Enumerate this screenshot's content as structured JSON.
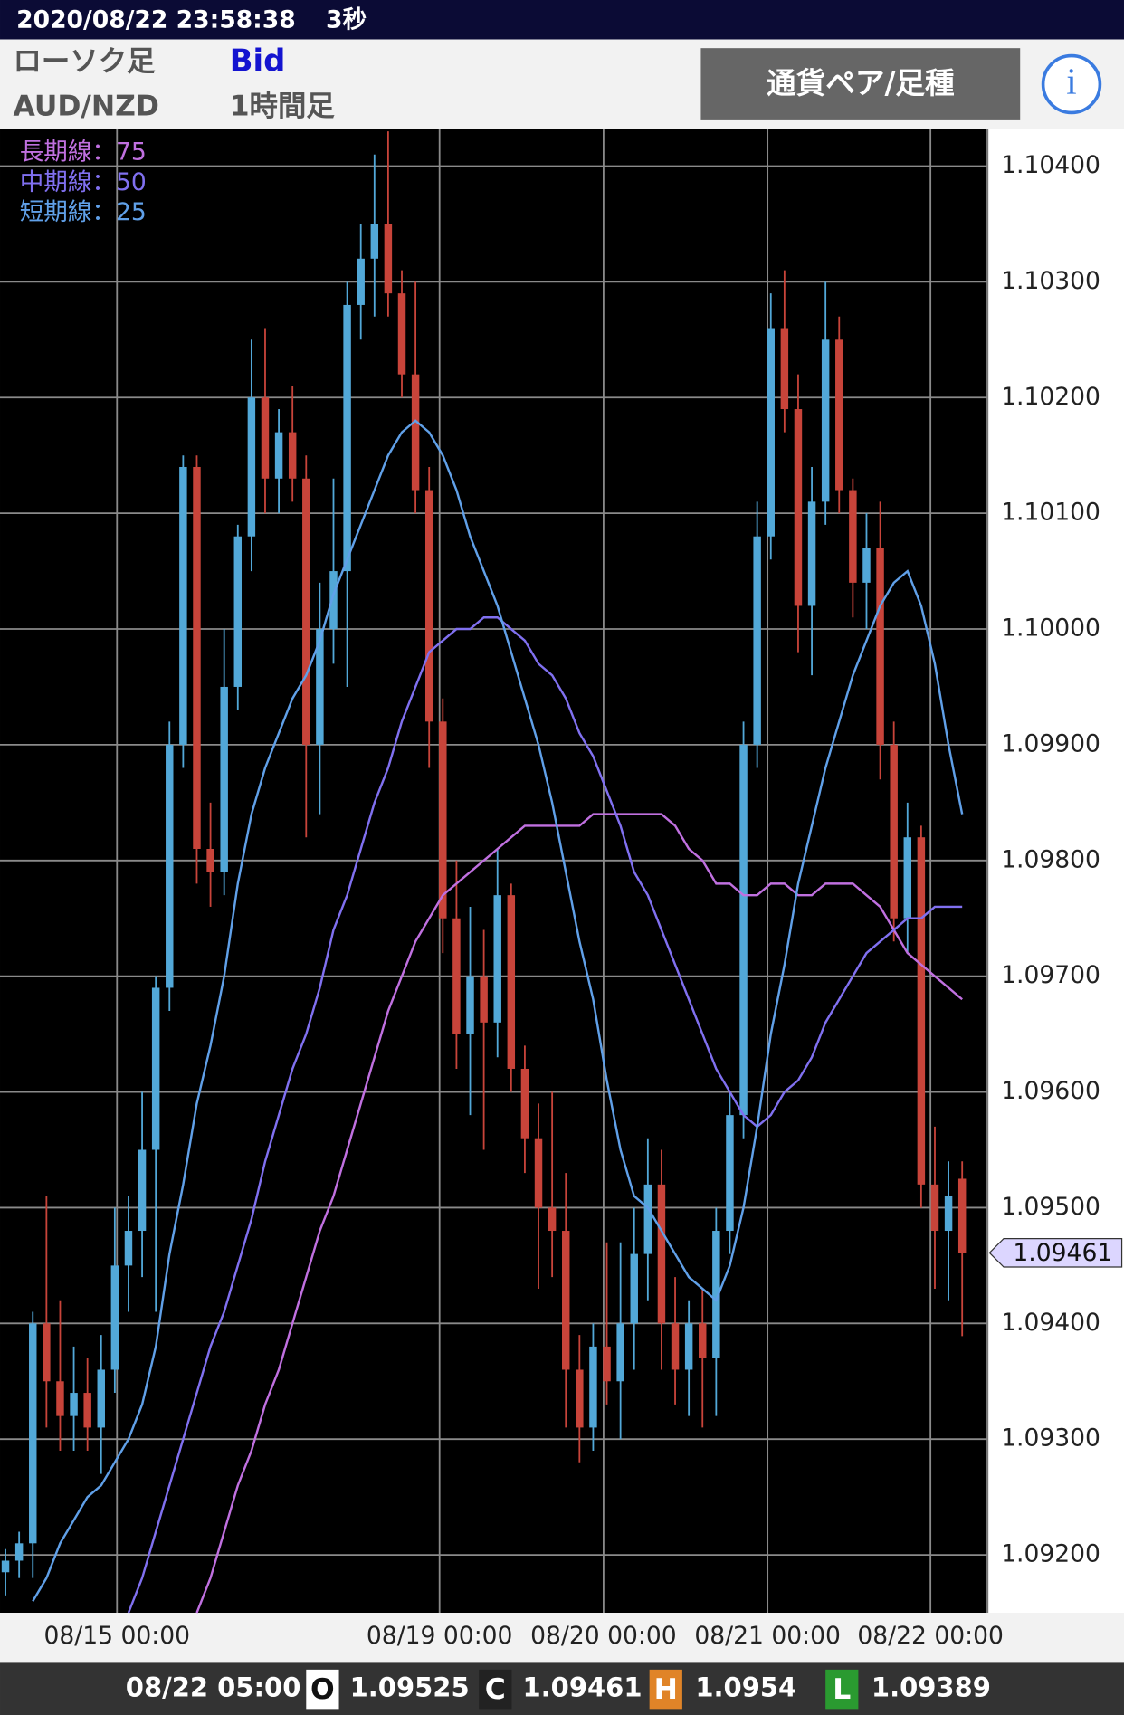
{
  "header": {
    "datetime": "2020/08/22 23:58:38",
    "interval": "3秒",
    "chart_kind": "ローソク足",
    "price_side": "Bid",
    "pair": "AUD/NZD",
    "timeframe": "1時間足",
    "button": "通貨ペア/足種",
    "info": "i"
  },
  "chart_data": {
    "type": "candlestick",
    "up_color": "#52a8d8",
    "down_color": "#c8443a",
    "grid": true,
    "xlim": [
      -0.4,
      71.84
    ],
    "ylim": [
      1.0915,
      1.10432
    ],
    "xticks": [
      {
        "value": 8.16,
        "label": "08/15 00:00"
      },
      {
        "value": 31.76,
        "label": "08/19 00:00"
      },
      {
        "value": 43.76,
        "label": "08/20 00:00"
      },
      {
        "value": 55.76,
        "label": "08/21 00:00"
      },
      {
        "value": 67.68,
        "label": "08/22 00:00"
      }
    ],
    "yticks": [
      {
        "value": 1.092,
        "label": "1.09200"
      },
      {
        "value": 1.093,
        "label": "1.09300"
      },
      {
        "value": 1.094,
        "label": "1.09400"
      },
      {
        "value": 1.095,
        "label": "1.09500"
      },
      {
        "value": 1.096,
        "label": "1.09600"
      },
      {
        "value": 1.097,
        "label": "1.09700"
      },
      {
        "value": 1.098,
        "label": "1.09800"
      },
      {
        "value": 1.099,
        "label": "1.09900"
      },
      {
        "value": 1.1,
        "label": "1.10000"
      },
      {
        "value": 1.101,
        "label": "1.10100"
      },
      {
        "value": 1.102,
        "label": "1.10200"
      },
      {
        "value": 1.103,
        "label": "1.10300"
      },
      {
        "value": 1.104,
        "label": "1.10400"
      }
    ],
    "open": [
      1.09185,
      1.09195,
      1.0921,
      1.094,
      1.0935,
      1.0932,
      1.0934,
      1.0931,
      1.0936,
      1.0945,
      1.0948,
      1.0955,
      1.0969,
      1.099,
      1.1014,
      1.0981,
      1.0979,
      1.0995,
      1.1008,
      1.102,
      1.1013,
      1.1017,
      1.1013,
      1.099,
      1.1,
      1.1005,
      1.1028,
      1.1032,
      1.1035,
      1.1029,
      1.1022,
      1.1012,
      1.0992,
      1.0975,
      1.0965,
      1.097,
      1.0966,
      1.0977,
      1.0962,
      1.0956,
      1.095,
      1.0948,
      1.0936,
      1.0931,
      1.0938,
      1.0935,
      1.094,
      1.0946,
      1.0952,
      1.094,
      1.0936,
      1.094,
      1.0937,
      1.0948,
      1.0958,
      1.099,
      1.1008,
      1.1026,
      1.1019,
      1.1002,
      1.1011,
      1.1025,
      1.1012,
      1.1004,
      1.1007,
      1.099,
      1.0975,
      1.0982,
      1.0952,
      1.0948,
      1.09525
    ],
    "high": [
      1.09205,
      1.0922,
      1.0941,
      1.0951,
      1.0942,
      1.0938,
      1.0937,
      1.0939,
      1.095,
      1.0951,
      1.096,
      1.097,
      1.0992,
      1.1015,
      1.1015,
      1.0985,
      1.1,
      1.1009,
      1.1025,
      1.1026,
      1.1019,
      1.1021,
      1.1015,
      1.1004,
      1.1013,
      1.103,
      1.1035,
      1.1041,
      1.1043,
      1.1031,
      1.103,
      1.1014,
      1.0994,
      1.098,
      1.0976,
      1.0974,
      1.0981,
      1.0978,
      1.0964,
      1.0959,
      1.096,
      1.0953,
      1.0939,
      1.094,
      1.0947,
      1.0947,
      1.095,
      1.0956,
      1.0955,
      1.0944,
      1.0942,
      1.0943,
      1.095,
      1.096,
      1.0992,
      1.1011,
      1.1029,
      1.1031,
      1.1022,
      1.1014,
      1.103,
      1.1027,
      1.1013,
      1.101,
      1.1011,
      1.0992,
      1.0985,
      1.0983,
      1.0957,
      1.0954,
      1.0954
    ],
    "low": [
      1.09165,
      1.0918,
      1.0918,
      1.0931,
      1.0929,
      1.0929,
      1.0929,
      1.0927,
      1.0934,
      1.0941,
      1.0944,
      1.0941,
      1.0967,
      1.0988,
      1.0978,
      1.0976,
      1.0977,
      1.0993,
      1.1005,
      1.101,
      1.101,
      1.1011,
      1.0982,
      1.0984,
      1.0997,
      1.0995,
      1.1025,
      1.1027,
      1.1027,
      1.102,
      1.101,
      1.0988,
      1.0972,
      1.0962,
      1.0958,
      1.0955,
      1.0963,
      1.096,
      1.0953,
      1.0943,
      1.0944,
      1.0931,
      1.0928,
      1.0929,
      1.0933,
      1.093,
      1.0936,
      1.0942,
      1.0936,
      1.0933,
      1.0932,
      1.0931,
      1.0932,
      1.0946,
      1.0956,
      1.0988,
      1.1006,
      1.1017,
      1.0998,
      1.0996,
      1.1009,
      1.101,
      1.1001,
      1.1,
      1.0987,
      1.0973,
      1.0972,
      1.095,
      1.0943,
      1.0942,
      1.09389
    ],
    "close": [
      1.09195,
      1.0921,
      1.094,
      1.0935,
      1.0932,
      1.0934,
      1.0931,
      1.0936,
      1.0945,
      1.0948,
      1.0955,
      1.0969,
      1.099,
      1.1014,
      1.0981,
      1.0979,
      1.0995,
      1.1008,
      1.102,
      1.1013,
      1.1017,
      1.1013,
      1.099,
      1.1,
      1.1005,
      1.1028,
      1.1032,
      1.1035,
      1.1029,
      1.1022,
      1.1012,
      1.0992,
      1.0975,
      1.0965,
      1.097,
      1.0966,
      1.0977,
      1.0962,
      1.0956,
      1.095,
      1.0948,
      1.0936,
      1.0931,
      1.0938,
      1.0935,
      1.094,
      1.0946,
      1.0952,
      1.094,
      1.0936,
      1.094,
      1.0937,
      1.0948,
      1.0958,
      1.099,
      1.1008,
      1.1026,
      1.1019,
      1.1002,
      1.1011,
      1.1025,
      1.1012,
      1.1004,
      1.1007,
      1.099,
      1.0975,
      1.0982,
      1.0952,
      1.0948,
      1.0951,
      1.09461
    ],
    "series": [
      {
        "name": "長期線：75",
        "color": "#c070e0",
        "values": [
          null,
          null,
          null,
          null,
          null,
          null,
          null,
          null,
          null,
          null,
          null,
          null,
          null,
          null,
          1.0915,
          1.0918,
          1.0922,
          1.0926,
          1.0929,
          1.0933,
          1.0936,
          1.094,
          1.0944,
          1.0948,
          1.0951,
          1.0955,
          1.0959,
          1.0963,
          1.0967,
          1.097,
          1.0973,
          1.0975,
          1.0977,
          1.0978,
          1.0979,
          1.098,
          1.0981,
          1.0982,
          1.0983,
          1.0983,
          1.0983,
          1.0983,
          1.0983,
          1.0984,
          1.0984,
          1.0984,
          1.0984,
          1.0984,
          1.0984,
          1.0983,
          1.0981,
          1.098,
          1.0978,
          1.0978,
          1.0977,
          1.0977,
          1.0978,
          1.0978,
          1.0977,
          1.0977,
          1.0978,
          1.0978,
          1.0978,
          1.0977,
          1.0976,
          1.0974,
          1.0972,
          1.0971,
          1.097,
          1.0969,
          1.0968
        ]
      },
      {
        "name": "中期線：50",
        "color": "#8070f0",
        "values": [
          null,
          null,
          null,
          null,
          null,
          null,
          null,
          null,
          null,
          1.0915,
          1.0918,
          1.0922,
          1.0926,
          1.093,
          1.0934,
          1.0938,
          1.0941,
          1.0945,
          1.0949,
          1.0954,
          1.0958,
          1.0962,
          1.0965,
          1.0969,
          1.0974,
          1.0977,
          1.0981,
          1.0985,
          1.0988,
          1.0992,
          1.0995,
          1.0998,
          1.0999,
          1.1,
          1.1,
          1.1001,
          1.1001,
          1.1,
          1.0999,
          1.0997,
          1.0996,
          1.0994,
          1.0991,
          1.0989,
          1.0986,
          1.0983,
          1.0979,
          1.0977,
          1.0974,
          1.0971,
          1.0968,
          1.0965,
          1.0962,
          1.096,
          1.0958,
          1.0957,
          1.0958,
          1.096,
          1.0961,
          1.0963,
          1.0966,
          1.0968,
          1.097,
          1.0972,
          1.0973,
          1.0974,
          1.0975,
          1.0975,
          1.0976,
          1.0976,
          1.0976
        ]
      },
      {
        "name": "短期線：25",
        "color": "#60a0e8",
        "values": [
          null,
          null,
          1.0916,
          1.0918,
          1.0921,
          1.0923,
          1.0925,
          1.0926,
          1.0928,
          1.093,
          1.0933,
          1.0938,
          1.0946,
          1.0952,
          1.0959,
          1.0964,
          1.097,
          1.0978,
          1.0984,
          1.0988,
          1.0991,
          1.0994,
          1.0996,
          1.0999,
          1.1003,
          1.1006,
          1.1009,
          1.1012,
          1.1015,
          1.1017,
          1.1018,
          1.1017,
          1.1015,
          1.1012,
          1.1008,
          1.1005,
          1.1002,
          1.0998,
          1.0994,
          1.099,
          1.0985,
          1.0979,
          1.0973,
          1.0968,
          1.0961,
          1.0955,
          1.0951,
          1.095,
          1.0948,
          1.0946,
          1.0944,
          1.0943,
          1.0942,
          1.0945,
          1.095,
          1.0957,
          1.0965,
          1.0971,
          1.0978,
          1.0983,
          1.0988,
          1.0992,
          1.0996,
          1.0999,
          1.1002,
          1.1004,
          1.1005,
          1.1002,
          1.0997,
          1.099,
          1.0984
        ]
      }
    ]
  },
  "footer": {
    "time": "08/22 05:00",
    "labels": [
      "O",
      "C",
      "H",
      "L"
    ]
  }
}
